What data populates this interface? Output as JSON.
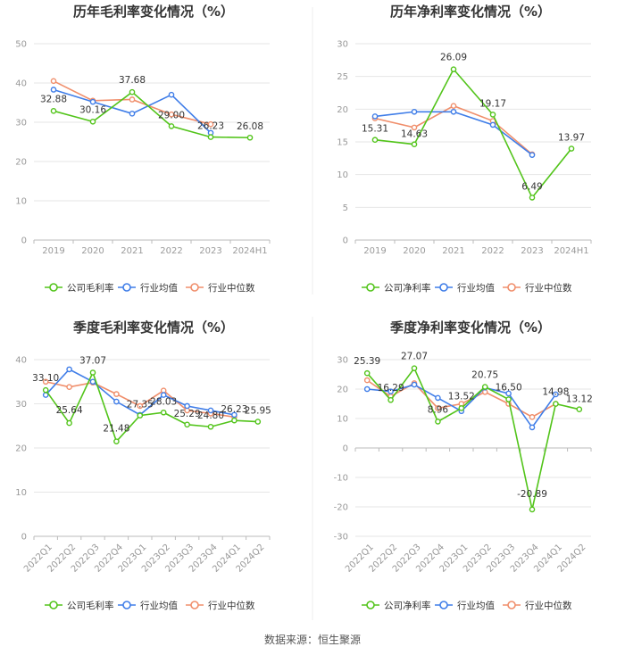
{
  "source_note": "数据来源：恒生聚源",
  "legend_labels": {
    "gross": [
      "公司毛利率",
      "行业均值",
      "行业中位数"
    ],
    "net": [
      "公司净利率",
      "行业均值",
      "行业中位数"
    ]
  },
  "colors": {
    "company": "#52c41a",
    "industry_mean": "#3f7de8",
    "industry_median": "#f08e6b",
    "grid": "#e6e6e6",
    "axis": "#bbbbbb"
  },
  "chart_data": [
    {
      "id": "annual-gross",
      "type": "line",
      "title": "历年毛利率变化情况（%）",
      "categories": [
        "2019",
        "2020",
        "2021",
        "2022",
        "2023",
        "2024H1"
      ],
      "yticks": [
        0,
        10,
        20,
        30,
        40,
        50
      ],
      "ylim": [
        0,
        50
      ],
      "legend": "gross",
      "series": [
        {
          "name": "公司毛利率",
          "key": "company",
          "values": [
            32.88,
            30.16,
            37.68,
            29.0,
            26.23,
            26.08
          ],
          "labels": [
            "32.88",
            "30.16",
            "37.68",
            "29.00",
            "26.23",
            "26.08"
          ]
        },
        {
          "name": "行业均值",
          "key": "industry_mean",
          "values": [
            38.3,
            35.2,
            32.2,
            37.0,
            27.3,
            null
          ]
        },
        {
          "name": "行业中位数",
          "key": "industry_median",
          "values": [
            40.5,
            35.5,
            35.8,
            32.0,
            29.5,
            null
          ]
        }
      ]
    },
    {
      "id": "annual-net",
      "type": "line",
      "title": "历年净利率变化情况（%）",
      "categories": [
        "2019",
        "2020",
        "2021",
        "2022",
        "2023",
        "2024H1"
      ],
      "yticks": [
        0,
        5,
        10,
        15,
        20,
        25,
        30
      ],
      "ylim": [
        0,
        30
      ],
      "legend": "net",
      "series": [
        {
          "name": "公司净利率",
          "key": "company",
          "values": [
            15.31,
            14.63,
            26.09,
            19.17,
            6.49,
            13.97
          ],
          "labels": [
            "15.31",
            "14.63",
            "26.09",
            "19.17",
            "6.49",
            "13.97"
          ]
        },
        {
          "name": "行业均值",
          "key": "industry_mean",
          "values": [
            18.9,
            19.6,
            19.6,
            17.6,
            13.0,
            null
          ]
        },
        {
          "name": "行业中位数",
          "key": "industry_median",
          "values": [
            18.6,
            17.2,
            20.5,
            18.2,
            13.1,
            null
          ]
        }
      ]
    },
    {
      "id": "quarterly-gross",
      "type": "line",
      "title": "季度毛利率变化情况（%）",
      "categories": [
        "2022Q1",
        "2022Q2",
        "2022Q3",
        "2022Q4",
        "2023Q1",
        "2023Q2",
        "2023Q3",
        "2023Q4",
        "2024Q1",
        "2024Q2"
      ],
      "yticks": [
        0,
        10,
        20,
        30,
        40
      ],
      "ylim": [
        0,
        40
      ],
      "legend": "gross",
      "rotate_ticks": true,
      "series": [
        {
          "name": "公司毛利率",
          "key": "company",
          "values": [
            33.1,
            25.64,
            37.07,
            21.48,
            27.35,
            28.03,
            25.29,
            24.8,
            26.23,
            25.95
          ],
          "labels": [
            "33.10",
            "25.64",
            "37.07",
            "21.48",
            "27.35",
            "28.03",
            "25.29",
            "24.80",
            "26.23",
            "25.95"
          ]
        },
        {
          "name": "行业均值",
          "key": "industry_mean",
          "values": [
            32.0,
            37.8,
            35.0,
            30.5,
            27.5,
            32.0,
            29.5,
            28.5,
            27.5,
            null
          ]
        },
        {
          "name": "行业中位数",
          "key": "industry_median",
          "values": [
            35.0,
            33.8,
            34.8,
            32.2,
            29.5,
            33.0,
            28.5,
            27.8,
            27.0,
            null
          ]
        }
      ]
    },
    {
      "id": "quarterly-net",
      "type": "line",
      "title": "季度净利率变化情况（%）",
      "categories": [
        "2022Q1",
        "2022Q2",
        "2022Q3",
        "2022Q4",
        "2023Q1",
        "2023Q2",
        "2023Q3",
        "2023Q4",
        "2024Q1",
        "2024Q2"
      ],
      "yticks": [
        -30,
        -20,
        -10,
        0,
        10,
        20,
        30
      ],
      "ylim": [
        -30,
        30
      ],
      "legend": "net",
      "rotate_ticks": true,
      "series": [
        {
          "name": "公司净利率",
          "key": "company",
          "values": [
            25.39,
            16.29,
            27.07,
            8.96,
            13.52,
            20.75,
            16.5,
            -20.89,
            14.98,
            13.12
          ],
          "labels": [
            "25.39",
            "16.29",
            "27.07",
            "8.96",
            "13.52",
            "20.75",
            "16.50",
            "-20.89",
            "14.98",
            "13.12"
          ]
        },
        {
          "name": "行业均值",
          "key": "industry_mean",
          "values": [
            20.0,
            19.2,
            21.5,
            17.0,
            12.5,
            20.5,
            18.5,
            7.0,
            18.2,
            null
          ]
        },
        {
          "name": "行业中位数",
          "key": "industry_median",
          "values": [
            23.0,
            17.5,
            22.0,
            13.5,
            15.0,
            19.0,
            15.0,
            10.5,
            15.0,
            null
          ]
        }
      ]
    }
  ]
}
